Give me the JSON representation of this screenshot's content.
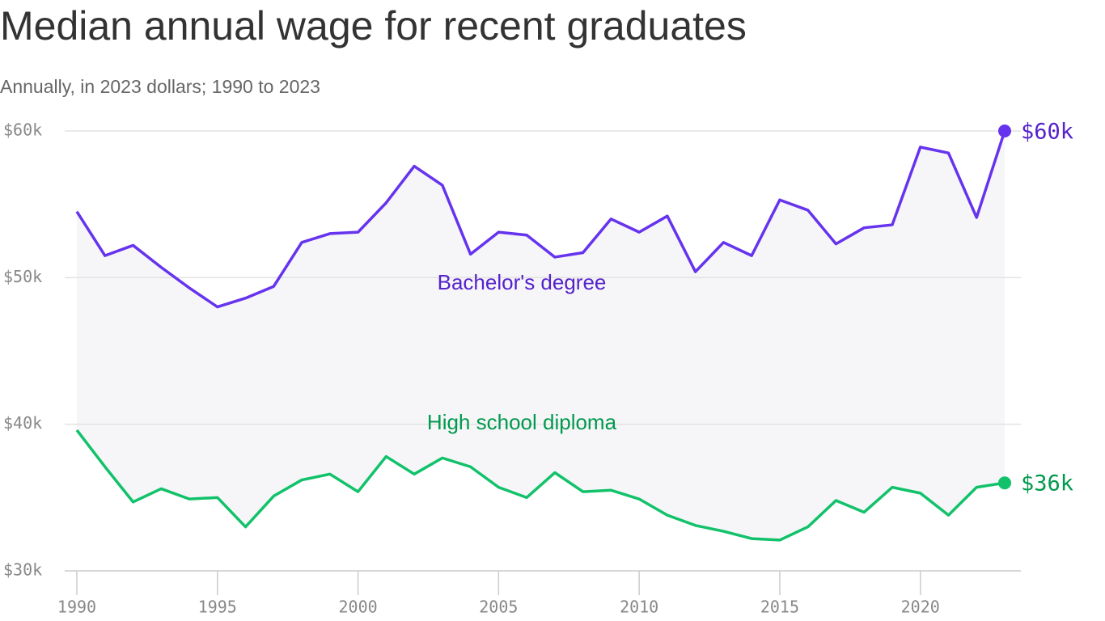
{
  "chart_data": {
    "type": "line",
    "title": "Median annual wage for recent graduates",
    "subtitle": "Annually, in 2023 dollars; 1990 to 2023",
    "x": [
      1990,
      1991,
      1992,
      1993,
      1994,
      1995,
      1996,
      1997,
      1998,
      1999,
      2000,
      2001,
      2002,
      2003,
      2004,
      2005,
      2006,
      2007,
      2008,
      2009,
      2010,
      2011,
      2012,
      2013,
      2014,
      2015,
      2016,
      2017,
      2018,
      2019,
      2020,
      2021,
      2022,
      2023
    ],
    "series": [
      {
        "name": "Bachelor's degree",
        "color": "#6633ee",
        "label_color": "#5522cc",
        "end_label": "$60k",
        "values": [
          54.5,
          51.5,
          52.2,
          50.7,
          49.3,
          48.0,
          48.6,
          49.4,
          52.4,
          53.0,
          53.1,
          55.1,
          57.6,
          56.3,
          51.6,
          53.1,
          52.9,
          51.4,
          51.7,
          54.0,
          53.1,
          54.2,
          50.4,
          52.4,
          51.5,
          55.3,
          54.6,
          52.3,
          53.4,
          53.6,
          58.9,
          58.5,
          54.1,
          60.0
        ]
      },
      {
        "name": "High school diploma",
        "color": "#11c26a",
        "label_color": "#00994d",
        "end_label": "$36k",
        "values": [
          39.6,
          37.1,
          34.7,
          35.6,
          34.9,
          35.0,
          33.0,
          35.1,
          36.2,
          36.6,
          35.4,
          37.8,
          36.6,
          37.7,
          37.1,
          35.7,
          35.0,
          36.7,
          35.4,
          35.5,
          34.9,
          33.8,
          33.1,
          32.7,
          32.2,
          32.1,
          33.0,
          34.8,
          34.0,
          35.7,
          35.3,
          33.8,
          35.7,
          36.0
        ]
      }
    ],
    "xlim": [
      1990,
      2023
    ],
    "xticks": [
      1990,
      1995,
      2000,
      2005,
      2010,
      2015,
      2020
    ],
    "ylim": [
      30,
      60
    ],
    "yticks": [
      {
        "value": 30,
        "label": "$30k"
      },
      {
        "value": 40,
        "label": "$40k"
      },
      {
        "value": 50,
        "label": "$50k"
      },
      {
        "value": 60,
        "label": "$60k"
      }
    ],
    "grid": true,
    "fill_between": true
  }
}
